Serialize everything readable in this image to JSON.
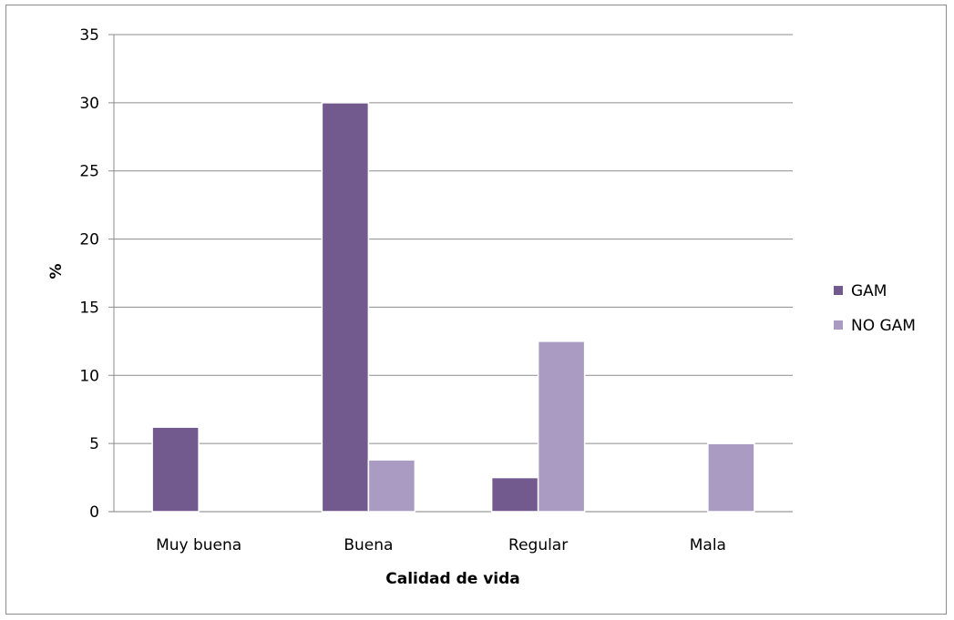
{
  "chart_data": {
    "type": "bar",
    "title": "",
    "xlabel": "Calidad de vida",
    "ylabel": "%",
    "ylim": [
      0,
      35
    ],
    "yticks": [
      "0",
      "5",
      "10",
      "15",
      "20",
      "25",
      "30",
      "35"
    ],
    "categories": [
      "Muy buena",
      "Buena",
      "Regular",
      "Mala"
    ],
    "series": [
      {
        "name": "GAM",
        "values": [
          6.2,
          30,
          2.5,
          0
        ],
        "color": "#725a8f"
      },
      {
        "name": "NO GAM",
        "values": [
          0,
          3.8,
          12.5,
          5
        ],
        "color": "#a99bc1"
      }
    ],
    "grid": true,
    "legend_position": "right"
  }
}
